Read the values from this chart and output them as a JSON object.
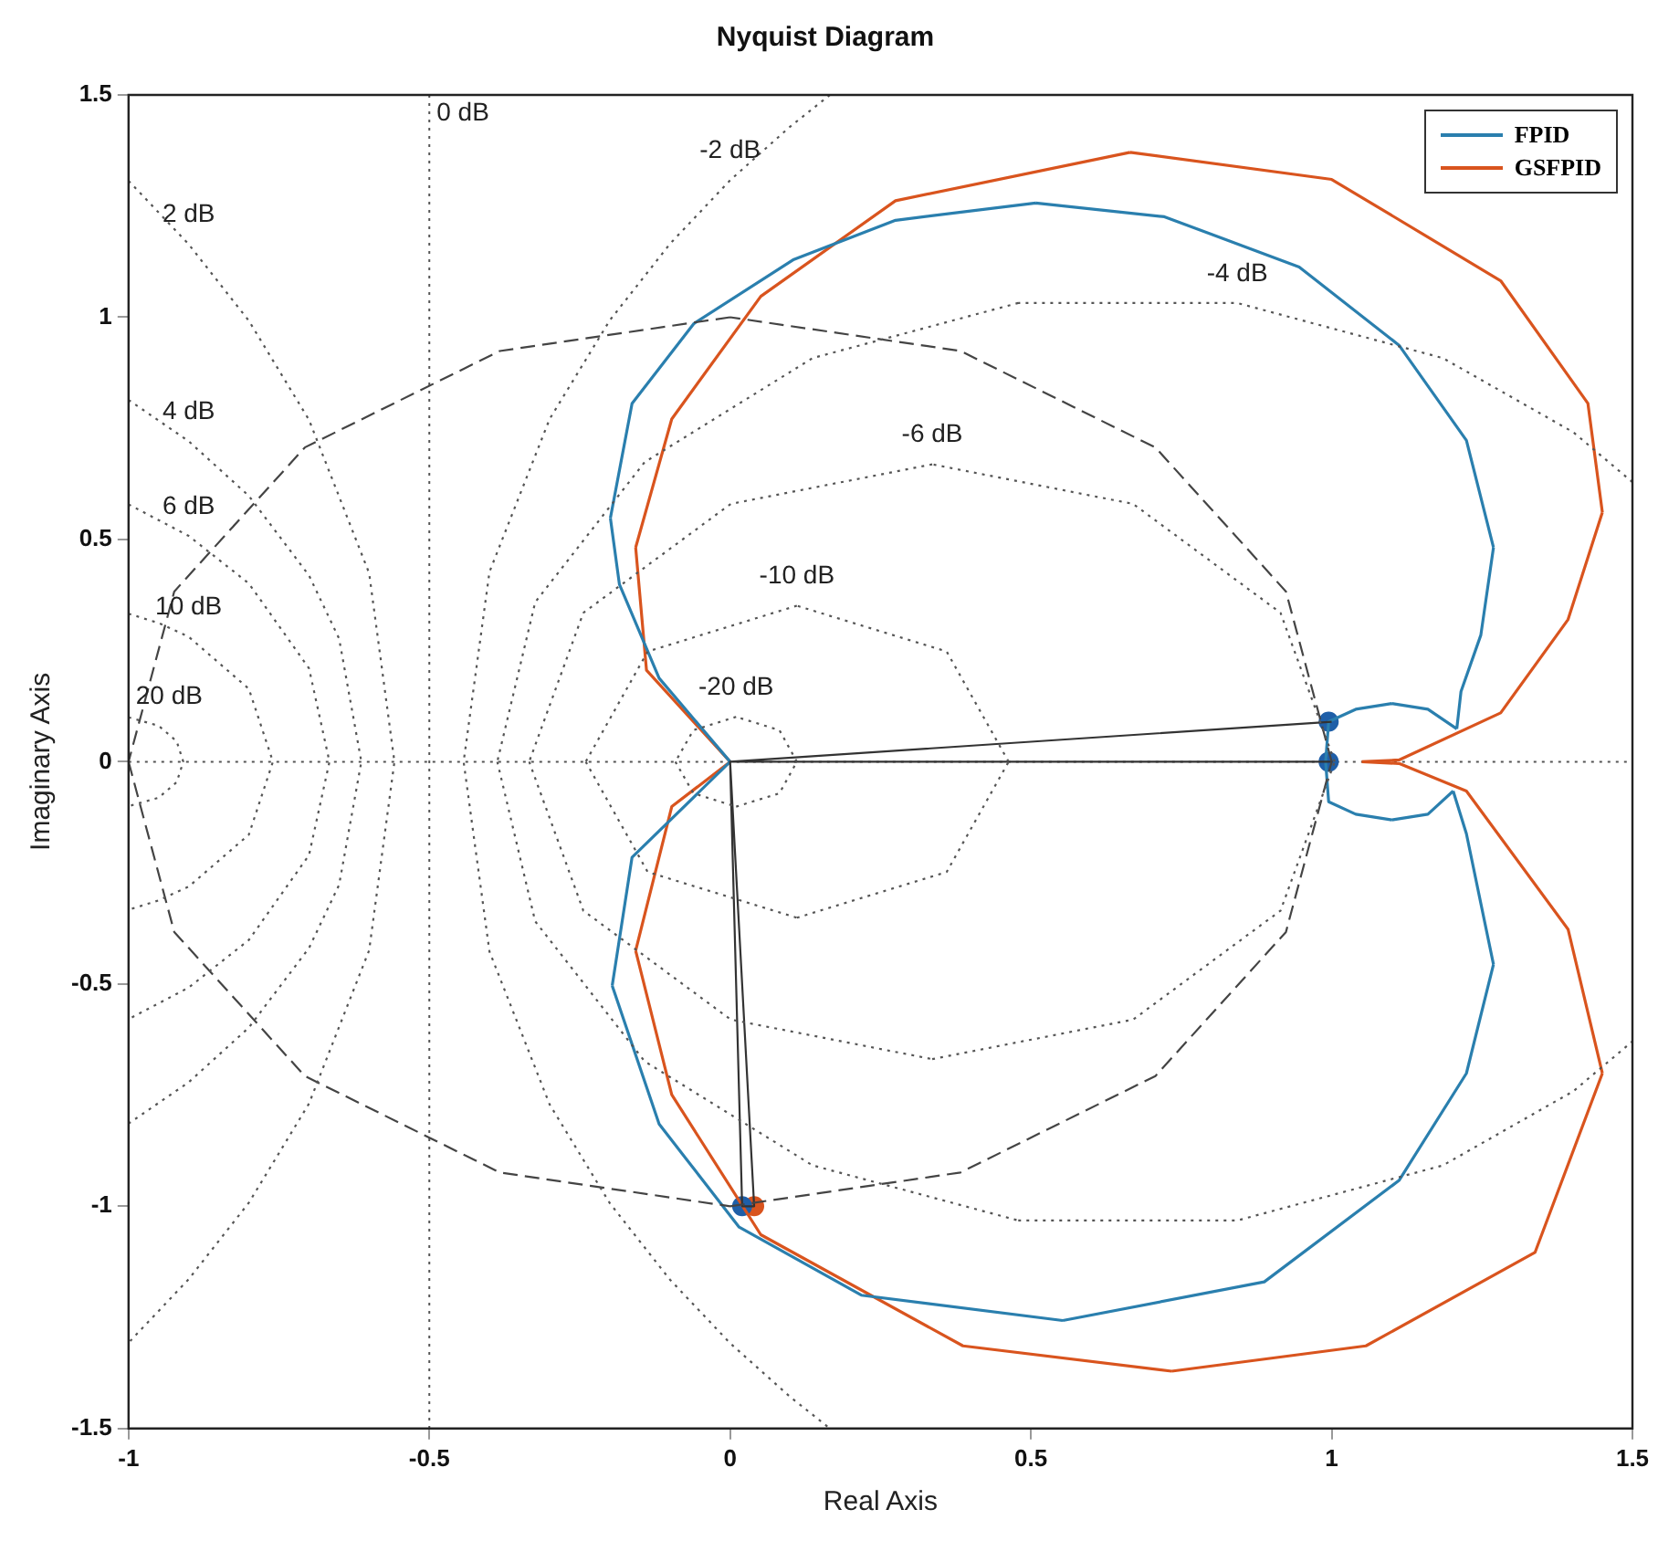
{
  "chart_data": {
    "type": "line",
    "title": "Nyquist Diagram",
    "xlabel": "Real Axis",
    "ylabel": "Imaginary Axis",
    "xlim": [
      -1,
      1.5
    ],
    "xticks": [
      -1,
      -0.5,
      0,
      0.5,
      1,
      1.5
    ],
    "ylim": [
      -1.5,
      1.5
    ],
    "yticks": [
      -1.5,
      -1,
      -0.5,
      0,
      0.5,
      1,
      1.5
    ],
    "grid": false,
    "legend": "top right",
    "ref_lines": [
      {
        "axis": "y",
        "value": 0,
        "line_style": "dotted",
        "color": "#555555"
      },
      {
        "axis": "x",
        "value": -0.5,
        "label": "0 dB",
        "line_style": "dotted",
        "color": "#555555"
      }
    ],
    "series": [
      {
        "color": "#555555",
        "line_style": "dotted",
        "x": [
          -1,
          -0.9,
          -0.8,
          -0.7,
          -0.6,
          -0.558,
          -0.6,
          -0.7,
          -0.8,
          -0.9,
          -1
        ],
        "values": [
          1.307,
          1.164,
          0.992,
          0.769,
          0.424,
          0,
          -0.424,
          -0.769,
          -0.992,
          -1.164,
          -1.307
        ]
      },
      {
        "color": "#555555",
        "line_style": "dotted",
        "x": [
          -1,
          -0.9,
          -0.8,
          -0.7,
          -0.65,
          -0.613,
          -0.65,
          -0.7,
          -0.8,
          -0.9,
          -1
        ],
        "values": [
          0.814,
          0.721,
          0.598,
          0.419,
          0.277,
          0,
          -0.277,
          -0.419,
          -0.598,
          -0.721,
          -0.814
        ]
      },
      {
        "color": "#555555",
        "line_style": "dotted",
        "x": [
          -1,
          -0.9,
          -0.8,
          -0.7,
          -0.666,
          -0.7,
          -0.8,
          -0.9,
          -1
        ],
        "values": [
          0.579,
          0.508,
          0.401,
          0.21,
          0,
          -0.21,
          -0.401,
          -0.508,
          -0.579
        ]
      },
      {
        "color": "#555555",
        "line_style": "dotted",
        "x": [
          -1,
          -0.95,
          -0.9,
          -0.8,
          -0.76,
          -0.8,
          -0.9,
          -0.95,
          -1
        ],
        "values": [
          0.333,
          0.312,
          0.281,
          0.164,
          0,
          -0.164,
          -0.281,
          -0.312,
          -0.333
        ]
      },
      {
        "color": "#555555",
        "line_style": "dotted",
        "x": [
          -1,
          -0.95,
          -0.92,
          -0.909,
          -0.92,
          -0.95,
          -1
        ],
        "values": [
          0.1,
          0.081,
          0.046,
          0,
          -0.046,
          -0.081,
          -0.1
        ]
      },
      {
        "color": "#555555",
        "line_style": "dotted",
        "x": [
          0.166,
          0.1,
          0,
          -0.1,
          -0.2,
          -0.3,
          -0.4,
          -0.443,
          -0.4,
          -0.3,
          -0.2,
          -0.1,
          0,
          0.1,
          0.166
        ],
        "values": [
          1.5,
          1.429,
          1.308,
          1.165,
          0.993,
          0.771,
          0.427,
          0,
          -0.427,
          -0.771,
          -0.993,
          -1.165,
          -1.308,
          -1.429,
          -1.5
        ]
      },
      {
        "color": "#555555",
        "line_style": "dotted",
        "x": [
          1.5,
          1.402,
          1.185,
          0.843,
          0.479,
          null,
          0.479,
          0.137,
          -0.142,
          -0.324,
          -0.387,
          null,
          -0.387,
          -0.324,
          -0.142,
          0.137,
          0.479,
          null,
          0.479,
          0.843,
          1.185,
          1.402,
          1.5
        ],
        "values": [
          0.629,
          0.741,
          0.908,
          1.032,
          1.032,
          null,
          1.032,
          0.908,
          0.674,
          0.359,
          0,
          null,
          0,
          -0.359,
          -0.674,
          -0.908,
          -1.032,
          null,
          -1.032,
          -1.032,
          -0.908,
          -0.741,
          -0.629
        ]
      },
      {
        "color": "#555555",
        "line_style": "dotted",
        "x": [
          1.005,
          0.915,
          0.67,
          0.336,
          null,
          0.336,
          0.001,
          -0.244,
          -0.334,
          null,
          -0.334,
          -0.244,
          0.001,
          0.336,
          null,
          0.336,
          0.67,
          0.915,
          1.005
        ],
        "values": [
          0,
          0.335,
          0.58,
          0.669,
          null,
          0.669,
          0.58,
          0.335,
          0,
          null,
          0,
          -0.335,
          -0.58,
          -0.669,
          null,
          -0.669,
          -0.58,
          -0.335,
          0
        ]
      },
      {
        "color": "#555555",
        "line_style": "dotted",
        "x": [
          0.463,
          0.36,
          0.111,
          null,
          0.111,
          -0.137,
          -0.24,
          null,
          -0.24,
          -0.137,
          0.111,
          null,
          0.111,
          0.36,
          0.463
        ],
        "values": [
          0,
          0.248,
          0.351,
          null,
          0.351,
          0.248,
          0,
          null,
          0,
          -0.248,
          -0.351,
          null,
          -0.351,
          -0.248,
          0
        ]
      },
      {
        "color": "#555555",
        "line_style": "dotted",
        "x": [
          0.111,
          0.082,
          0.01,
          null,
          0.01,
          -0.061,
          -0.091,
          null,
          -0.091,
          -0.061,
          0.01,
          null,
          0.01,
          0.082,
          0.111
        ],
        "values": [
          0,
          0.071,
          0.101,
          null,
          0.101,
          0.071,
          0,
          null,
          0,
          -0.071,
          -0.101,
          null,
          -0.101,
          -0.071,
          0
        ]
      },
      {
        "color": "#444444",
        "line_style": "dashed",
        "x": [
          1,
          0.924,
          0.707,
          0.383,
          0,
          null,
          0,
          -0.383,
          -0.707,
          -0.924,
          -1,
          null,
          -1,
          -0.924,
          -0.707,
          -0.383,
          0,
          null,
          0,
          0.383,
          0.707,
          0.924,
          1
        ],
        "values": [
          0,
          0.383,
          0.707,
          0.924,
          1,
          null,
          1,
          0.924,
          0.707,
          0.383,
          0,
          null,
          0,
          -0.383,
          -0.707,
          -0.924,
          -1,
          null,
          -1,
          -0.924,
          -0.707,
          -0.383,
          0
        ]
      },
      {
        "color": "#333333",
        "line_style": "solid",
        "x": [
          1,
          0,
          1,
          0,
          0.02,
          0.04,
          0
        ],
        "values": [
          0.09,
          0,
          0,
          0,
          -1,
          -1,
          0
        ]
      },
      {
        "name": "FPID",
        "color": "#2a7fae",
        "line_style": "solid",
        "x": [
          0,
          -0.118,
          -0.184,
          -0.199,
          null,
          -0.199,
          -0.163,
          -0.06,
          0.106,
          0.275,
          0.508,
          null,
          0.508,
          0.722,
          0.946,
          1.112,
          1.224,
          1.269,
          null,
          1.269,
          1.248,
          1.215,
          1.208,
          null,
          1.208,
          1.16,
          1.1,
          null,
          1.1,
          1.04,
          0.995,
          0.99,
          null,
          0.99,
          0.995,
          1.04,
          1.1,
          null,
          1.1,
          1.16,
          1.202,
          null,
          1.202,
          1.224,
          1.269,
          null,
          1.269,
          1.224,
          1.112,
          0.888,
          0.553,
          null,
          0.553,
          0.218,
          0.015,
          -0.118,
          -0.196,
          null,
          -0.196,
          -0.163,
          0
        ],
        "values": [
          0,
          0.188,
          0.399,
          0.548,
          null,
          0.548,
          0.806,
          0.986,
          1.13,
          1.218,
          1.257,
          null,
          1.257,
          1.226,
          1.113,
          0.937,
          0.723,
          0.482,
          null,
          0.482,
          0.285,
          0.158,
          0.074,
          null,
          0.074,
          0.118,
          0.131,
          null,
          0.131,
          0.118,
          0.09,
          0,
          null,
          0,
          -0.09,
          -0.118,
          -0.131,
          null,
          -0.131,
          -0.118,
          -0.066,
          null,
          -0.066,
          -0.162,
          -0.456,
          null,
          -0.456,
          -0.701,
          -0.942,
          -1.17,
          -1.257,
          null,
          -1.257,
          -1.2,
          -1.047,
          -0.815,
          -0.504,
          null,
          -0.504,
          -0.215,
          0
        ]
      },
      {
        "name": "GSFPID",
        "color": "#d9541e",
        "line_style": "solid",
        "x": [
          0,
          -0.139,
          -0.157,
          null,
          -0.157,
          -0.097,
          0.051,
          0.275,
          0.665,
          null,
          0.665,
          1,
          1.281,
          1.426,
          1.45,
          null,
          1.45,
          1.393,
          1.281,
          1.112,
          1.05,
          null,
          1.05,
          1.112,
          1.224,
          1.393,
          1.45,
          null,
          1.45,
          1.338,
          1.057,
          0.734,
          null,
          0.734,
          0.387,
          0.051,
          -0.097,
          -0.157,
          null,
          -0.157,
          -0.097,
          0
        ],
        "values": [
          0,
          0.206,
          0.482,
          null,
          0.482,
          0.771,
          1.047,
          1.262,
          1.371,
          null,
          1.371,
          1.31,
          1.082,
          0.806,
          0.561,
          null,
          0.561,
          0.32,
          0.11,
          0.004,
          0,
          null,
          0,
          -0.004,
          -0.066,
          -0.377,
          -0.701,
          null,
          -0.701,
          -1.104,
          -1.314,
          -1.371,
          null,
          -1.371,
          -1.314,
          -1.064,
          -0.749,
          -0.425,
          null,
          -0.425,
          -0.101,
          0
        ]
      },
      {
        "type": "scatter",
        "color": "#1f5fa8",
        "marker": "circle",
        "x": [
          0.995,
          0.995,
          0.02
        ],
        "values": [
          0.09,
          0,
          -1
        ]
      },
      {
        "type": "scatter",
        "color": "#d9541e",
        "marker": "circle",
        "x": [
          0.04
        ],
        "values": [
          -1
        ]
      }
    ],
    "annotations": [
      {
        "text": "2 dB",
        "x": -0.9,
        "y": 1.164
      },
      {
        "text": "4 dB",
        "x": -0.9,
        "y": 0.721
      },
      {
        "text": "6 dB",
        "x": -0.9,
        "y": 0.508
      },
      {
        "text": "10 dB",
        "x": -0.9,
        "y": 0.281
      },
      {
        "text": "20 dB",
        "x": -0.95,
        "y": 0.081
      },
      {
        "text": "-2 dB",
        "x": 0,
        "y": 1.308
      },
      {
        "text": "-4 dB",
        "x": 0.843,
        "y": 1.032
      },
      {
        "text": "-6 dB",
        "x": 0.336,
        "y": 0.669
      },
      {
        "text": "-10 dB",
        "x": 0.111,
        "y": 0.351
      },
      {
        "text": "-20 dB",
        "x": 0.01,
        "y": 0.101
      }
    ]
  }
}
